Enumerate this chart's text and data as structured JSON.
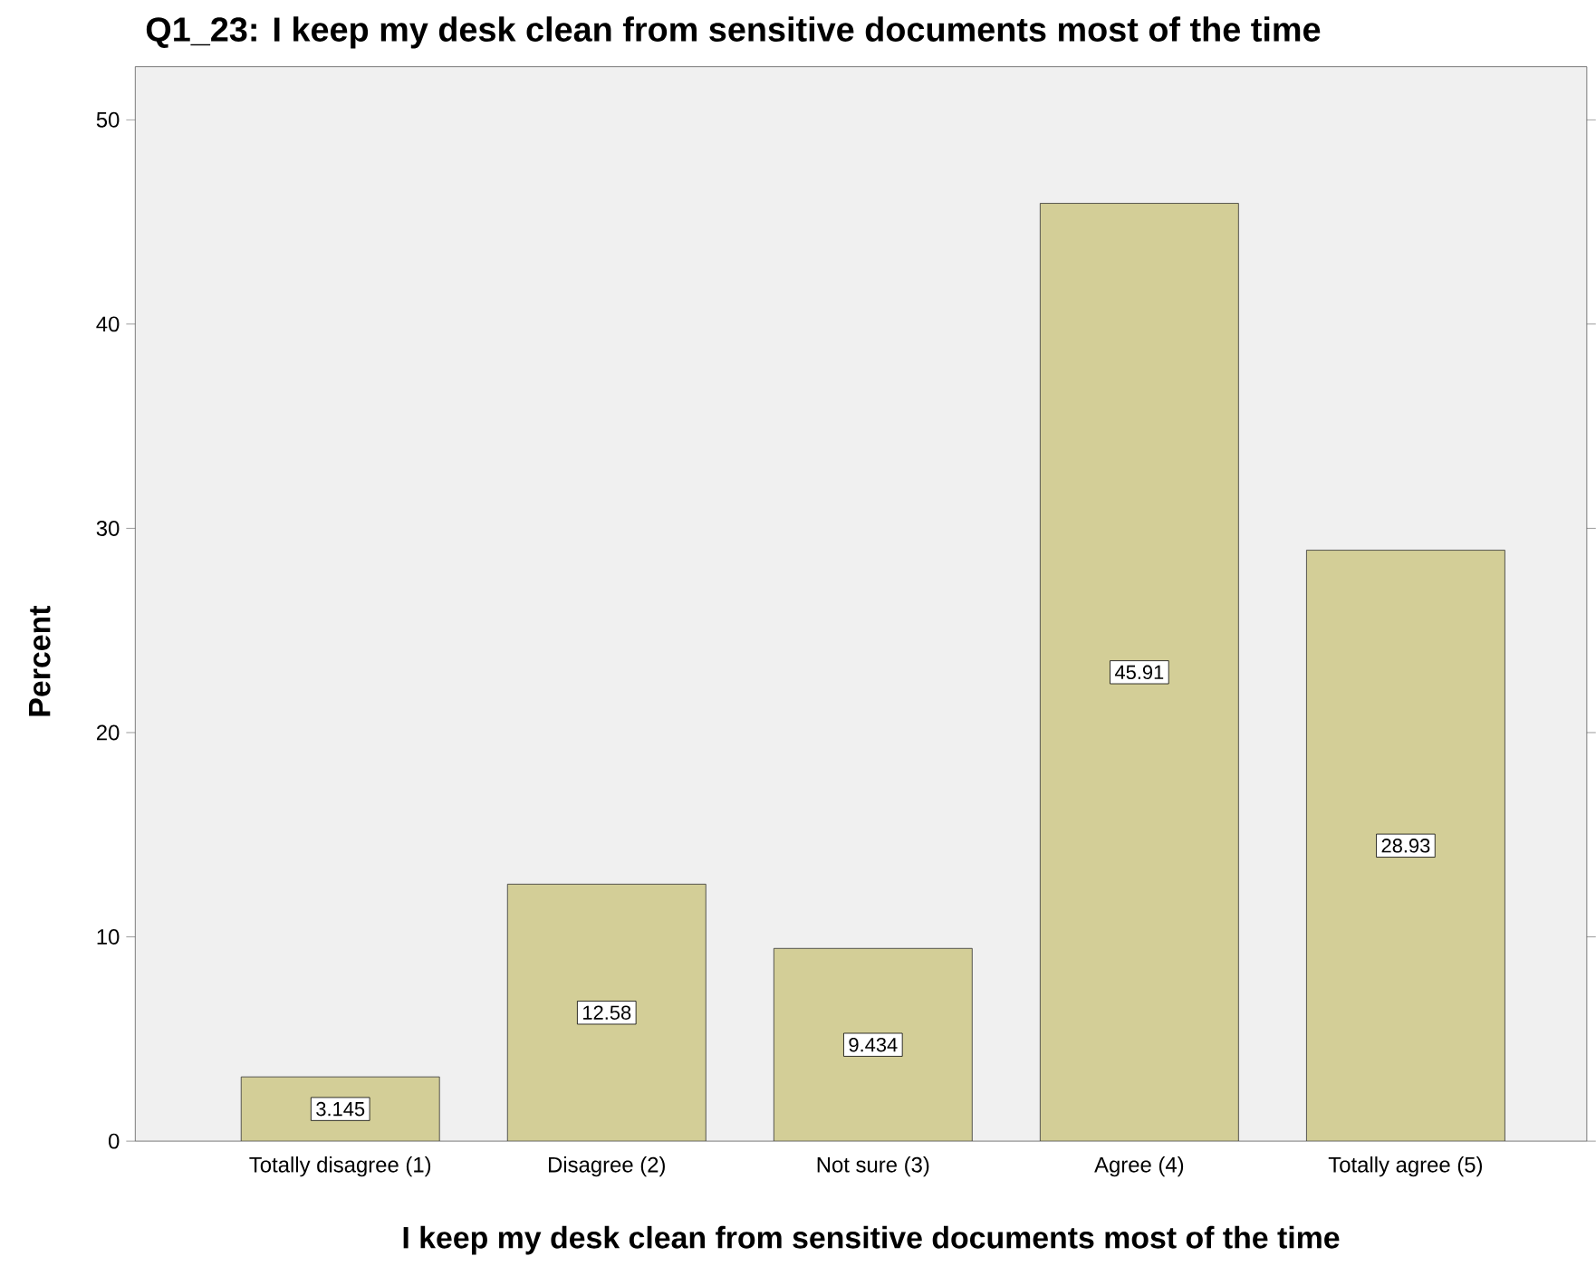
{
  "chart_data": {
    "type": "bar",
    "title": "Q1_23: I keep my desk clean from sensitive documents most of the time",
    "xlabel": "I keep my desk clean from sensitive documents most of the time",
    "ylabel": "Percent",
    "categories": [
      "Totally disagree (1)",
      "Disagree (2)",
      "Not sure (3)",
      "Agree (4)",
      "Totally agree (5)"
    ],
    "values": [
      3.145,
      12.58,
      9.434,
      45.91,
      28.93
    ],
    "color": "#d3ce97",
    "ylim": [
      0,
      52.6
    ],
    "yticks": [
      0,
      10,
      20,
      30,
      40,
      50
    ],
    "data_labels": true
  }
}
